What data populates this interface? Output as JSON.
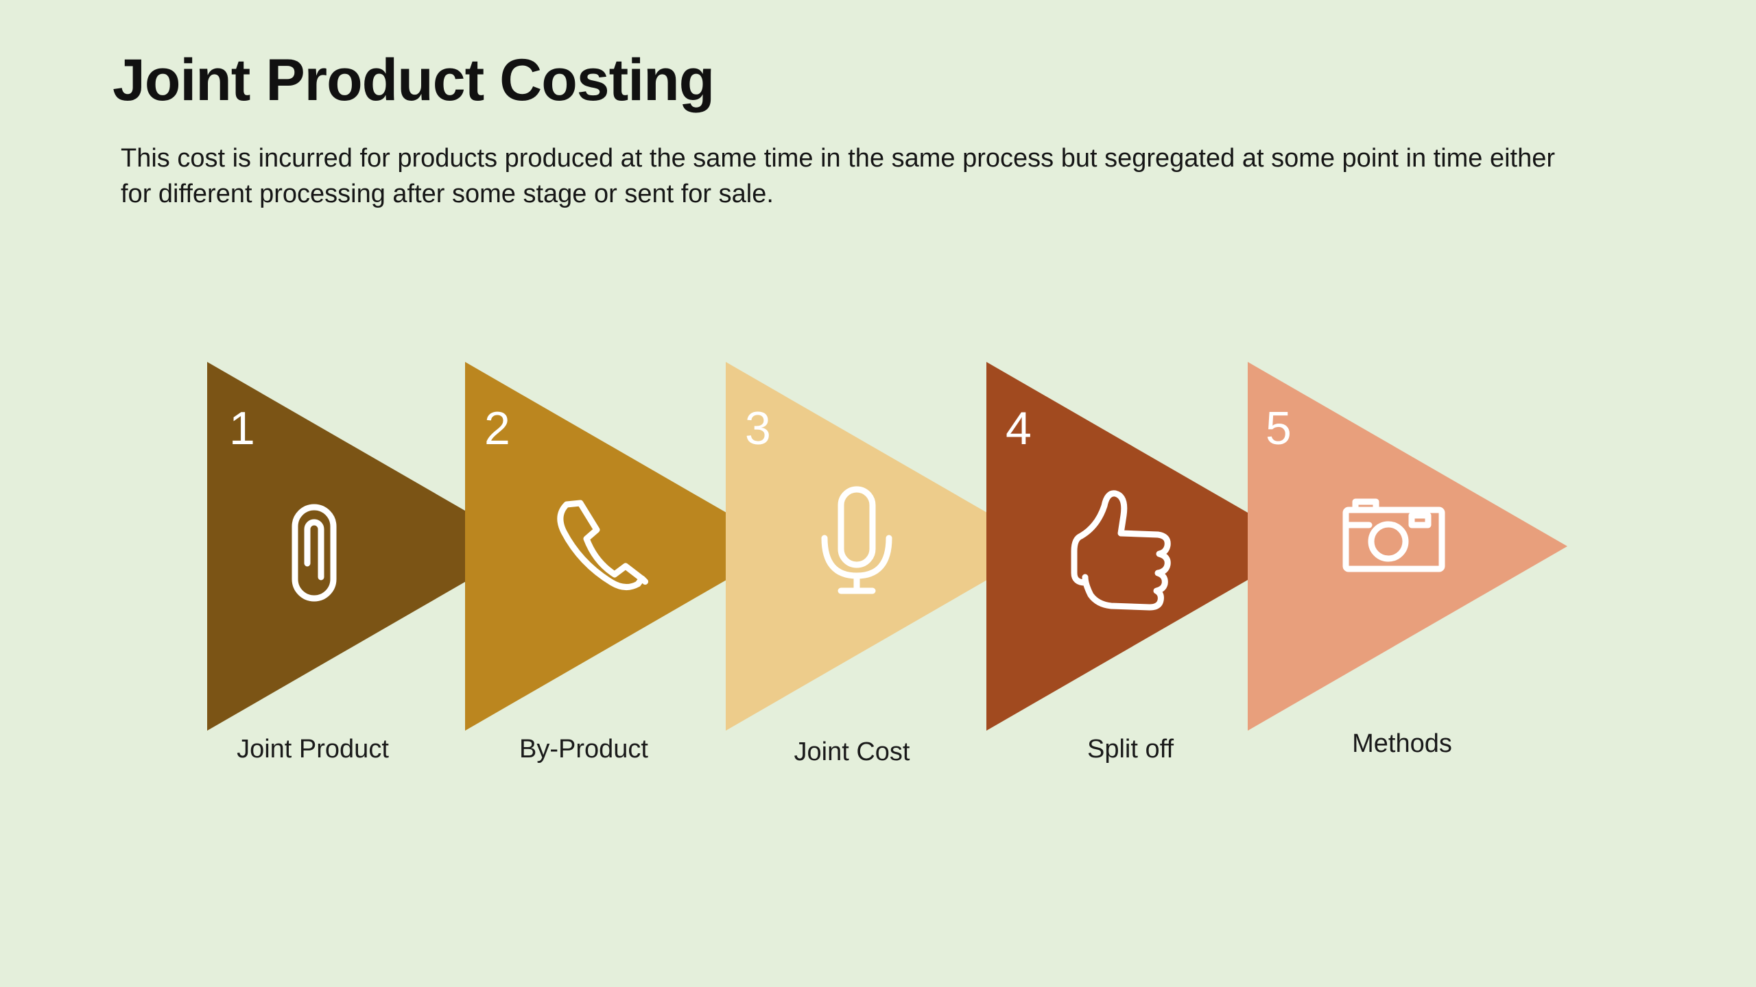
{
  "slide": {
    "title": "Joint Product Costing",
    "description": "This cost is incurred for products produced at the same time in the same process but segregated at some point in time either for different processing after some stage or sent  for sale."
  },
  "colors": {
    "background": "#e4efdb",
    "step1": "#7b5415",
    "step2": "#bb861f",
    "step3": "#edcc8b",
    "step4": "#a14a1f",
    "step5": "#e89f7c"
  },
  "steps": [
    {
      "number": "1",
      "label": "Joint Product",
      "icon": "paperclip-icon"
    },
    {
      "number": "2",
      "label": "By-Product",
      "icon": "phone-icon"
    },
    {
      "number": "3",
      "label": "Joint Cost",
      "icon": "microphone-icon"
    },
    {
      "number": "4",
      "label": "Split off",
      "icon": "thumbs-up-icon"
    },
    {
      "number": "5",
      "label": "Methods",
      "icon": "camera-icon"
    }
  ]
}
